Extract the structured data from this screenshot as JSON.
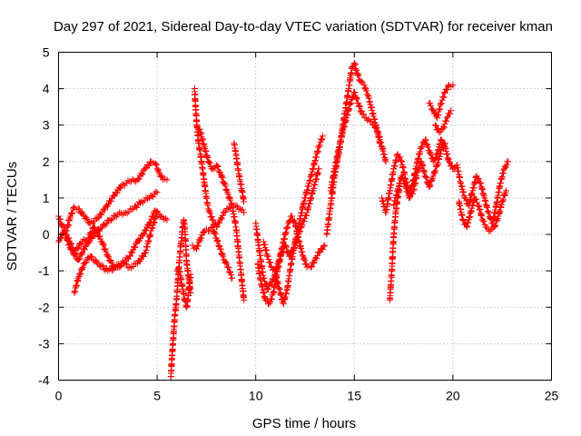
{
  "chart_data": {
    "type": "scatter",
    "title": "Day 297 of 2021, Sidereal Day-to-day VTEC variation (SDTVAR) for receiver kman",
    "xlabel": "GPS time / hours",
    "ylabel": "SDTVAR / TECUs",
    "xlim": [
      0,
      25
    ],
    "ylim": [
      -4,
      5
    ],
    "x_ticks": [
      0,
      5,
      10,
      15,
      20,
      25
    ],
    "y_ticks": [
      -4,
      -3,
      -2,
      -1,
      0,
      1,
      2,
      3,
      4,
      5
    ],
    "grid": true,
    "legend": "none",
    "marker": "plus",
    "color": "#ff0000",
    "series": [
      {
        "x": [
          0.0,
          0.2,
          0.4,
          0.6,
          0.8,
          1.0,
          1.3,
          1.6,
          2.0,
          2.4,
          2.8,
          3.2,
          3.6,
          4.0,
          4.4,
          4.7,
          4.9,
          5.1,
          5.3,
          5.5
        ],
        "y": [
          0.5,
          0.2,
          0.1,
          0.5,
          0.75,
          0.7,
          0.5,
          0.3,
          0.45,
          0.75,
          1.05,
          1.35,
          1.45,
          1.5,
          1.8,
          2.0,
          1.95,
          1.7,
          1.5,
          1.5
        ]
      },
      {
        "x": [
          0.0,
          0.3,
          0.6,
          1.0,
          1.4,
          1.8,
          2.2,
          2.6,
          3.0,
          3.4,
          3.8,
          4.2,
          4.6,
          5.0
        ],
        "y": [
          -0.2,
          0.1,
          -0.4,
          -0.7,
          -0.3,
          0.0,
          0.2,
          0.4,
          0.55,
          0.6,
          0.7,
          0.9,
          1.0,
          1.15
        ]
      },
      {
        "x": [
          0.5,
          0.8,
          1.2,
          1.5,
          1.8,
          2.2,
          2.5,
          2.8,
          3.2,
          3.6,
          4.0,
          4.3,
          4.6,
          4.9,
          5.2,
          5.5
        ],
        "y": [
          -0.1,
          -0.5,
          -0.2,
          -0.1,
          0.2,
          -0.2,
          -0.6,
          -0.9,
          -0.8,
          -0.6,
          -0.2,
          0.0,
          0.3,
          0.65,
          0.5,
          0.4
        ]
      },
      {
        "x": [
          0.8,
          1.0,
          1.3,
          1.6,
          2.0,
          2.5,
          3.0,
          3.3,
          3.6,
          4.0,
          4.4,
          4.7,
          5.0
        ],
        "y": [
          -1.6,
          -1.2,
          -0.8,
          -0.6,
          -0.8,
          -1.0,
          -0.9,
          -0.8,
          -0.9,
          -0.8,
          -0.5,
          0.1,
          0.6
        ]
      },
      {
        "x": [
          5.7,
          5.75,
          5.8,
          5.85,
          5.9,
          5.95,
          6.0,
          6.05,
          6.1,
          6.2,
          6.3,
          6.35,
          6.4,
          6.45,
          6.5,
          6.6,
          6.7
        ],
        "y": [
          -3.9,
          -3.4,
          -3.0,
          -2.6,
          -2.2,
          -2.0,
          -1.7,
          -1.3,
          -0.9,
          -0.3,
          0.2,
          0.4,
          0.2,
          -0.3,
          -0.8,
          -1.2,
          -1.6
        ]
      },
      {
        "x": [
          6.0,
          6.1,
          6.2,
          6.3,
          6.4,
          6.5,
          6.6,
          6.7
        ],
        "y": [
          -1.0,
          -0.9,
          -1.2,
          -1.5,
          -1.8,
          -2.0,
          -1.6,
          -1.1
        ]
      },
      {
        "x": [
          6.9,
          6.95,
          7.0,
          7.05,
          7.1,
          7.2,
          7.3,
          7.4,
          7.5,
          7.6,
          7.8,
          8.0,
          8.2,
          8.4,
          8.6,
          8.8,
          9.0,
          9.2,
          9.4
        ],
        "y": [
          4.0,
          3.5,
          3.1,
          2.8,
          2.5,
          2.2,
          1.8,
          1.4,
          1.0,
          0.7,
          0.4,
          0.2,
          0.4,
          0.6,
          0.7,
          0.8,
          0.8,
          0.7,
          0.6
        ]
      },
      {
        "x": [
          7.0,
          7.2,
          7.4,
          7.6,
          7.8,
          8.0,
          8.2,
          8.4,
          8.6,
          8.8,
          9.0,
          9.2,
          9.4
        ],
        "y": [
          3.0,
          2.8,
          2.4,
          2.0,
          1.8,
          1.9,
          1.7,
          1.4,
          1.1,
          0.8,
          0.2,
          -0.8,
          -1.8
        ]
      },
      {
        "x": [
          6.8,
          7.0,
          7.2,
          7.4,
          7.6,
          7.8,
          8.0,
          8.2,
          8.4,
          8.6,
          8.8
        ],
        "y": [
          -0.3,
          -0.4,
          -0.1,
          0.1,
          0.1,
          0.2,
          -0.1,
          -0.4,
          -0.7,
          -0.9,
          -1.2
        ]
      },
      {
        "x": [
          8.9,
          9.0,
          9.1,
          9.2,
          9.3,
          9.4
        ],
        "y": [
          2.5,
          2.2,
          1.8,
          1.5,
          1.2,
          0.9
        ]
      },
      {
        "x": [
          10.0,
          10.2,
          10.4,
          10.6,
          10.8,
          11.0,
          11.2,
          11.4,
          11.6,
          11.8,
          12.0,
          12.2,
          12.4,
          12.6,
          12.8,
          13.0,
          13.2,
          13.4
        ],
        "y": [
          0.3,
          -0.5,
          -1.2,
          -1.5,
          -1.3,
          -1.1,
          -1.5,
          -1.9,
          -1.5,
          -0.8,
          -0.2,
          0.3,
          0.8,
          1.2,
          1.6,
          2.0,
          2.4,
          2.7
        ]
      },
      {
        "x": [
          10.1,
          10.3,
          10.5,
          10.7,
          10.9,
          11.1,
          11.3,
          11.5,
          11.7,
          12.0,
          12.3,
          12.6,
          12.9,
          13.2
        ],
        "y": [
          -0.8,
          -1.4,
          -1.8,
          -1.9,
          -1.6,
          -1.0,
          -0.5,
          -0.3,
          -0.6,
          -0.3,
          0.2,
          0.6,
          1.2,
          1.8
        ]
      },
      {
        "x": [
          10.4,
          10.6,
          10.8,
          11.0,
          11.2,
          11.4,
          11.6,
          11.8,
          12.0,
          12.2,
          12.4,
          12.6,
          12.8,
          13.0,
          13.2,
          13.5
        ],
        "y": [
          -0.2,
          -0.6,
          -0.9,
          -1.0,
          -0.7,
          -0.2,
          0.2,
          0.5,
          0.3,
          -0.2,
          -0.6,
          -0.9,
          -0.9,
          -0.7,
          -0.5,
          -0.3
        ]
      },
      {
        "x": [
          13.6,
          13.8,
          14.0,
          14.2,
          14.4,
          14.6,
          14.8,
          14.9,
          15.0,
          15.1,
          15.3,
          15.5,
          15.7,
          15.9,
          16.1,
          16.3
        ],
        "y": [
          0.0,
          0.8,
          1.6,
          2.2,
          2.9,
          3.6,
          4.3,
          4.6,
          4.7,
          4.5,
          4.2,
          4.1,
          3.8,
          3.4,
          3.0,
          2.5
        ]
      },
      {
        "x": [
          13.8,
          14.0,
          14.2,
          14.4,
          14.6,
          14.8,
          15.0,
          15.2,
          15.4,
          15.6,
          15.8,
          16.0,
          16.2,
          16.4,
          16.6
        ],
        "y": [
          1.2,
          1.8,
          2.3,
          2.8,
          3.2,
          3.6,
          3.9,
          3.6,
          3.3,
          3.2,
          3.1,
          3.0,
          2.8,
          2.4,
          2.0
        ]
      },
      {
        "x": [
          16.8,
          16.85,
          16.9,
          16.95,
          17.0,
          17.1,
          17.2,
          17.3
        ],
        "y": [
          -1.8,
          -1.4,
          -1.0,
          -0.5,
          0.0,
          0.6,
          1.0,
          1.4
        ]
      },
      {
        "x": [
          16.4,
          16.6,
          16.8,
          17.0,
          17.2,
          17.4,
          17.6,
          17.8,
          18.0,
          18.2,
          18.4,
          18.6,
          18.8,
          19.0,
          19.2,
          19.4,
          19.6,
          19.8,
          20.0
        ],
        "y": [
          1.0,
          0.6,
          1.2,
          1.8,
          2.2,
          2.0,
          1.5,
          1.1,
          1.5,
          2.0,
          2.4,
          2.6,
          2.3,
          2.0,
          2.2,
          2.6,
          2.4,
          2.0,
          1.8
        ]
      },
      {
        "x": [
          17.0,
          17.2,
          17.4,
          17.6,
          17.8,
          18.0,
          18.2,
          18.4,
          18.6,
          18.8,
          19.0,
          19.2,
          19.4,
          19.6
        ],
        "y": [
          0.8,
          1.2,
          1.6,
          1.3,
          1.0,
          1.2,
          1.7,
          2.0,
          1.6,
          1.3,
          1.6,
          1.9,
          2.3,
          2.5
        ]
      },
      {
        "x": [
          18.8,
          19.0,
          19.2,
          19.4,
          19.6,
          19.8,
          20.0
        ],
        "y": [
          3.6,
          3.4,
          3.2,
          3.6,
          3.9,
          4.1,
          4.1
        ]
      },
      {
        "x": [
          19.1,
          19.3,
          19.5,
          19.7,
          19.9
        ],
        "y": [
          3.0,
          2.8,
          2.9,
          3.2,
          3.4
        ]
      },
      {
        "x": [
          20.0,
          20.2,
          20.4,
          20.6,
          20.8,
          21.0,
          21.2,
          21.4,
          21.6,
          21.8,
          22.0,
          22.2,
          22.4,
          22.6,
          22.8
        ],
        "y": [
          1.8,
          1.9,
          1.4,
          1.0,
          0.8,
          1.2,
          1.6,
          1.4,
          1.0,
          0.6,
          0.3,
          0.8,
          1.4,
          1.8,
          2.0
        ]
      },
      {
        "x": [
          20.3,
          20.5,
          20.7,
          20.9,
          21.1,
          21.3,
          21.5,
          21.7,
          21.9,
          22.1,
          22.3,
          22.5,
          22.7
        ],
        "y": [
          0.9,
          0.4,
          0.2,
          0.6,
          1.0,
          0.8,
          0.4,
          0.2,
          0.1,
          0.2,
          0.5,
          0.9,
          1.2
        ]
      }
    ]
  }
}
